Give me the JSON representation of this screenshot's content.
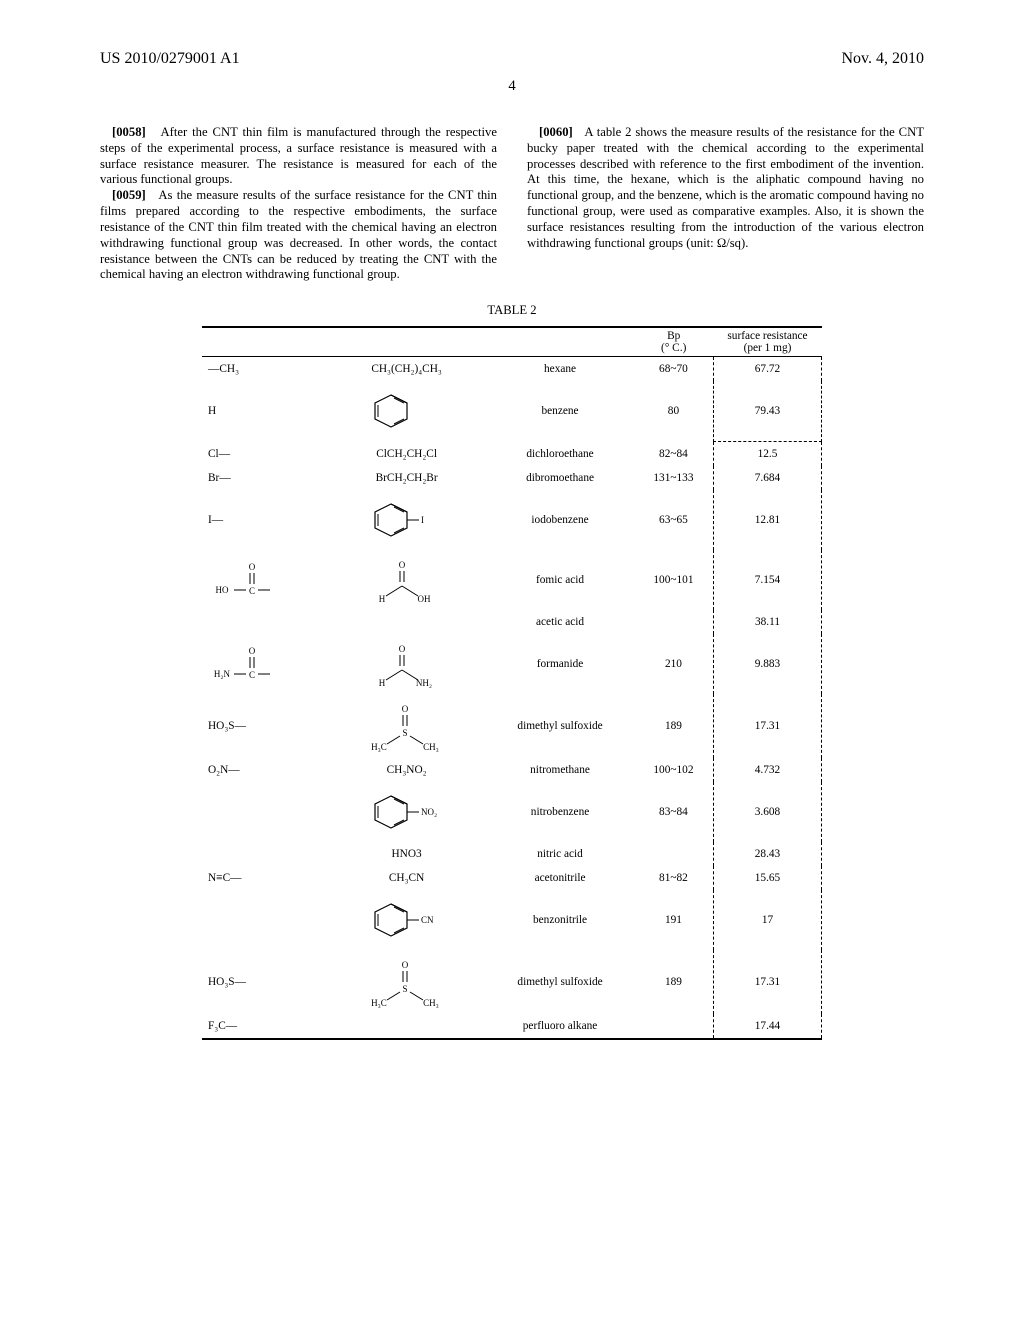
{
  "header": {
    "patent_number": "US 2010/0279001 A1",
    "date": "Nov. 4, 2010",
    "page_number": "4"
  },
  "paragraphs": {
    "p0058": {
      "num": "[0058]",
      "text": "After the CNT thin film is manufactured through the respective steps of the experimental process, a surface resistance is measured with a surface resistance measurer. The resistance is measured for each of the various functional groups."
    },
    "p0059": {
      "num": "[0059]",
      "text": "As the measure results of the surface resistance for the CNT thin films prepared according to the respective embodiments, the surface resistance of the CNT thin film treated with the chemical having an electron withdrawing functional group was decreased. In other words, the contact resistance between the CNTs can be reduced by treating the CNT with the chemical having an electron withdrawing functional group."
    },
    "p0060": {
      "num": "[0060]",
      "text": "A table 2 shows the measure results of the resistance for the CNT bucky paper treated with the chemical according to the experimental processes described with reference to the first embodiment of the invention. At this time, the hexane, which is the aliphatic compound having no functional group, and the benzene, which is the aromatic compound having no functional group, were used as comparative examples. Also, it is shown the surface resistances resulting from the introduction of the various electron withdrawing functional groups (unit: Ω/sq)."
    }
  },
  "table": {
    "caption": "TABLE 2",
    "headers": {
      "bp": "Bp",
      "bp_unit": "(° C.)",
      "sr": "surface resistance",
      "sr_unit": "(per 1 mg)"
    },
    "rows": [
      {
        "func": "—CH₃",
        "formula": "CH₃(CH₂)₄CH₃",
        "name": "hexane",
        "bp": "68~70",
        "sr": "67.72",
        "struct_type": "formula"
      },
      {
        "func": "H",
        "formula": "",
        "name": "benzene",
        "bp": "80",
        "sr": "79.43",
        "struct_type": "benzene"
      },
      {
        "func": "Cl—",
        "formula": "ClCH₂CH₂Cl",
        "name": "dichloroethane",
        "bp": "82~84",
        "sr": "12.5",
        "struct_type": "formula"
      },
      {
        "func": "Br—",
        "formula": "BrCH₂CH₂Br",
        "name": "dibromoethane",
        "bp": "131~133",
        "sr": "7.684",
        "struct_type": "formula"
      },
      {
        "func": "I—",
        "formula": "",
        "name": "iodobenzene",
        "bp": "63~65",
        "sr": "12.81",
        "struct_type": "benzene-sub",
        "sub": "I"
      },
      {
        "func": "HO—C(=O)—",
        "formula": "",
        "name": "fomic acid",
        "bp": "100~101",
        "sr": "7.154",
        "struct_type": "formic"
      },
      {
        "func": "",
        "formula": "",
        "name": "acetic acid",
        "bp": "",
        "sr": "38.11",
        "struct_type": "none"
      },
      {
        "func": "H₂N—C(=O)—",
        "formula": "",
        "name": "formanide",
        "bp": "210",
        "sr": "9.883",
        "struct_type": "formamide"
      },
      {
        "func": "HO₃S—",
        "formula": "",
        "name": "dimethyl sulfoxide",
        "bp": "189",
        "sr": "17.31",
        "struct_type": "dmso"
      },
      {
        "func": "O₂N—",
        "formula": "CH₃NO₂",
        "name": "nitromethane",
        "bp": "100~102",
        "sr": "4.732",
        "struct_type": "formula"
      },
      {
        "func": "",
        "formula": "",
        "name": "nitrobenzene",
        "bp": "83~84",
        "sr": "3.608",
        "struct_type": "benzene-sub",
        "sub": "NO₂"
      },
      {
        "func": "",
        "formula": "HNO3",
        "name": "nitric acid",
        "bp": "",
        "sr": "28.43",
        "struct_type": "formula"
      },
      {
        "func": "N≡C—",
        "formula": "CH₃CN",
        "name": "acetonitrile",
        "bp": "81~82",
        "sr": "15.65",
        "struct_type": "formula"
      },
      {
        "func": "",
        "formula": "",
        "name": "benzonitrile",
        "bp": "191",
        "sr": "17",
        "struct_type": "benzene-sub",
        "sub": "CN"
      },
      {
        "func": "HO₃S—",
        "formula": "",
        "name": "dimethyl sulfoxide",
        "bp": "189",
        "sr": "17.31",
        "struct_type": "dmso"
      },
      {
        "func": "F₃C—",
        "formula": "",
        "name": "perfluoro alkane",
        "bp": "",
        "sr": "17.44",
        "struct_type": "none"
      }
    ]
  }
}
